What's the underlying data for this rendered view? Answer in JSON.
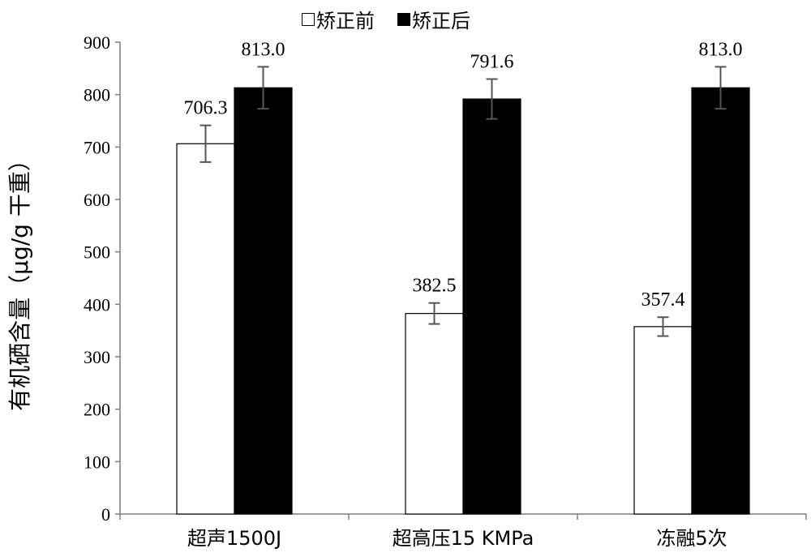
{
  "chart_data": {
    "type": "bar",
    "categories": [
      "超声1500J",
      "超高压15 KMPa",
      "冻融5次"
    ],
    "series": [
      {
        "name": "矫正前",
        "values": [
          706.3,
          382.5,
          357.4
        ],
        "value_labels": [
          "706.3",
          "382.5",
          "357.4"
        ],
        "error": [
          35,
          20,
          18
        ],
        "color": "#ffffff"
      },
      {
        "name": "矫正后",
        "values": [
          813.0,
          791.6,
          813.0
        ],
        "value_labels": [
          "813.0",
          "791.6",
          "813.0"
        ],
        "error": [
          40,
          38,
          40
        ],
        "color": "#000000"
      }
    ],
    "ylabel": "有机硒含量（μg/g 干重）",
    "xlabel": "",
    "ylim": [
      0,
      900
    ],
    "yticks": [
      0,
      100,
      200,
      300,
      400,
      500,
      600,
      700,
      800,
      900
    ],
    "grid": false,
    "legend_position": "top-center"
  }
}
